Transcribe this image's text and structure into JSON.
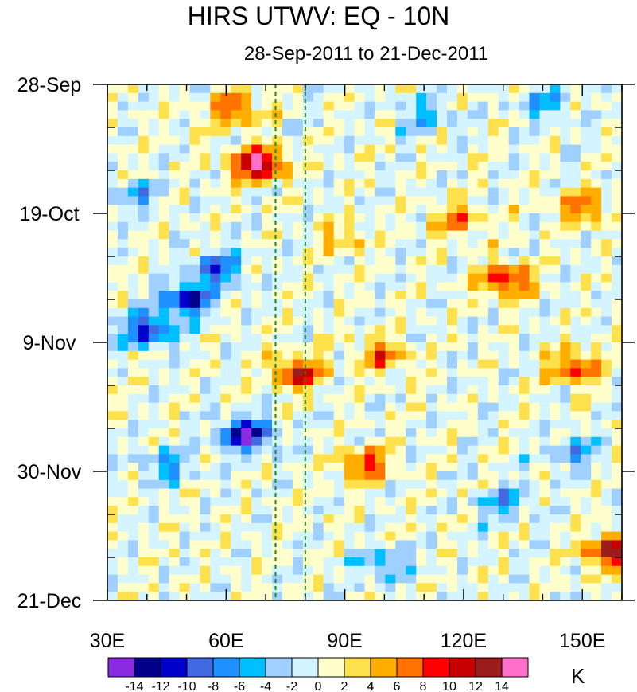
{
  "chart_data": {
    "type": "heatmap",
    "title": "HIRS UTWV: EQ - 10N",
    "subtitle": "28-Sep-2011 to 21-Dec-2011",
    "x_ticks": [
      {
        "value": 30,
        "label": "30E"
      },
      {
        "value": 60,
        "label": "60E"
      },
      {
        "value": 90,
        "label": "90E"
      },
      {
        "value": 120,
        "label": "120E"
      },
      {
        "value": 150,
        "label": "150E"
      }
    ],
    "xlim": [
      30,
      160
    ],
    "y_ticks": [
      {
        "value": 0,
        "label": "28-Sep"
      },
      {
        "value": 21,
        "label": "19-Oct"
      },
      {
        "value": 42,
        "label": "9-Nov"
      },
      {
        "value": 63,
        "label": "30-Nov"
      },
      {
        "value": 84,
        "label": "21-Dec"
      }
    ],
    "ylim_days": [
      0,
      84
    ],
    "reference_lines_lon": [
      72.5,
      80
    ],
    "units": "K",
    "colorbar": {
      "levels": [
        "-14",
        "-12",
        "-10",
        "-8",
        "-6",
        "-4",
        "-2",
        "0",
        "2",
        "4",
        "6",
        "8",
        "10",
        "12",
        "14"
      ],
      "colors": [
        "#8a2be2",
        "#00008b",
        "#0000cd",
        "#4169e1",
        "#1e90ff",
        "#00bfff",
        "#9fd0ff",
        "#d4f4ff",
        "#ffffcc",
        "#ffe04d",
        "#ffae00",
        "#ff7300",
        "#ff0000",
        "#c80000",
        "#9b1c1c",
        "#ff70c8"
      ]
    },
    "anomalies_K": [
      {
        "lon": 68,
        "day": 13,
        "value": 15
      },
      {
        "lon": 62,
        "day": 4,
        "value": 8
      },
      {
        "lon": 78,
        "day": 47,
        "value": 11
      },
      {
        "lon": 131,
        "day": 32,
        "value": 10
      },
      {
        "lon": 95,
        "day": 62,
        "value": 9
      },
      {
        "lon": 148,
        "day": 46,
        "value": 9
      },
      {
        "lon": 157,
        "day": 76,
        "value": 12
      },
      {
        "lon": 118,
        "day": 22,
        "value": 6
      },
      {
        "lon": 150,
        "day": 20,
        "value": 7
      },
      {
        "lon": 100,
        "day": 44,
        "value": 7
      },
      {
        "lon": 65,
        "day": 57,
        "value": -14
      },
      {
        "lon": 50,
        "day": 35,
        "value": -12
      },
      {
        "lon": 40,
        "day": 40,
        "value": -11
      },
      {
        "lon": 58,
        "day": 30,
        "value": -9
      },
      {
        "lon": 45,
        "day": 62,
        "value": -6
      },
      {
        "lon": 110,
        "day": 5,
        "value": -5
      },
      {
        "lon": 130,
        "day": 68,
        "value": -6
      },
      {
        "lon": 100,
        "day": 78,
        "value": -6
      },
      {
        "lon": 148,
        "day": 60,
        "value": -5
      },
      {
        "lon": 38,
        "day": 18,
        "value": -5
      },
      {
        "lon": 90,
        "day": 25,
        "value": 4
      },
      {
        "lon": 140,
        "day": 3,
        "value": -5
      }
    ]
  }
}
